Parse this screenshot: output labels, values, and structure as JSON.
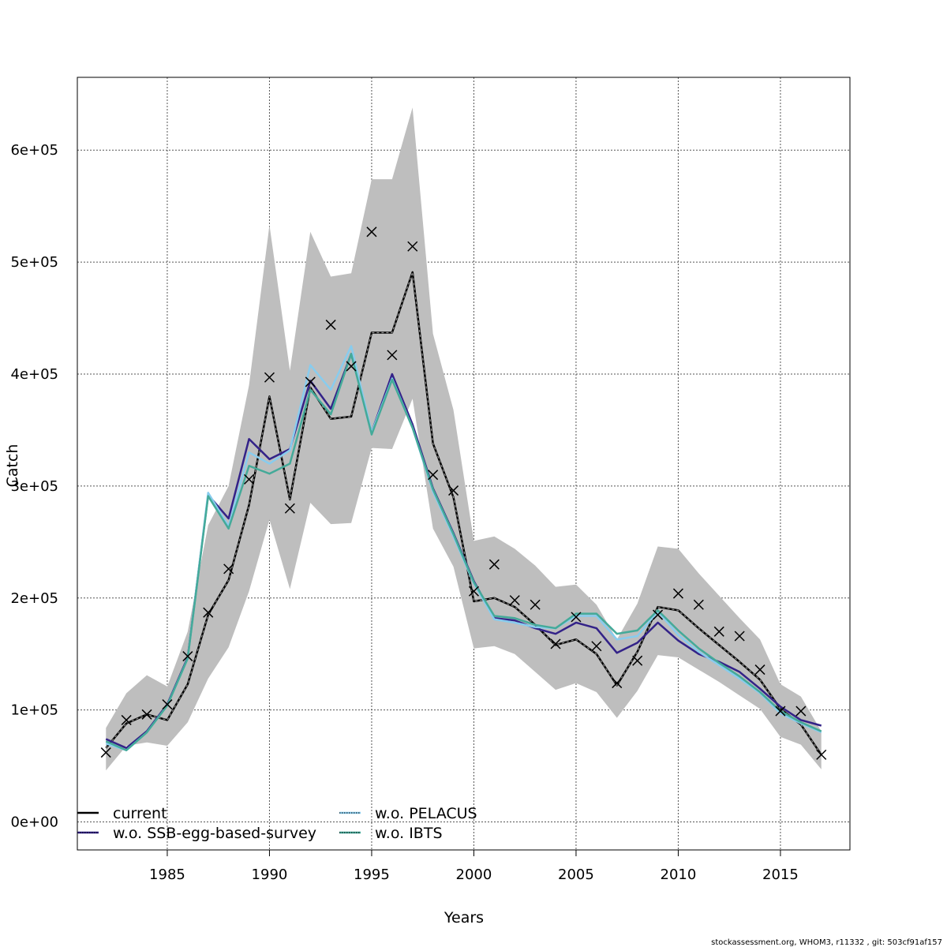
{
  "chart_data": {
    "type": "line",
    "title": "",
    "xlabel": "Years",
    "ylabel": "Catch",
    "xlim": [
      1980.6,
      2018.4
    ],
    "ylim": [
      -25000,
      665000
    ],
    "grid": true,
    "legend_position": "bottom-left",
    "x_ticks": [
      1985,
      1990,
      1995,
      2000,
      2005,
      2010,
      2015
    ],
    "x_tick_labels": [
      "1985",
      "1990",
      "1995",
      "2000",
      "2005",
      "2010",
      "2015"
    ],
    "y_ticks": [
      0,
      100000,
      200000,
      300000,
      400000,
      500000,
      600000
    ],
    "y_tick_labels": [
      "0e+00",
      "1e+05",
      "2e+05",
      "3e+05",
      "4e+05",
      "5e+05",
      "6e+05"
    ],
    "x": [
      1982,
      1983,
      1984,
      1985,
      1986,
      1987,
      1988,
      1989,
      1990,
      1991,
      1992,
      1993,
      1994,
      1995,
      1996,
      1997,
      1998,
      1999,
      2000,
      2001,
      2002,
      2003,
      2004,
      2005,
      2006,
      2007,
      2008,
      2009,
      2010,
      2011,
      2012,
      2013,
      2014,
      2015,
      2016,
      2017
    ],
    "observed": [
      62000,
      91000,
      96000,
      105000,
      148000,
      187000,
      226000,
      306000,
      397000,
      280000,
      393000,
      444000,
      407000,
      527000,
      417000,
      514000,
      310000,
      296000,
      206000,
      230000,
      198000,
      194000,
      159000,
      183000,
      157000,
      124000,
      144000,
      185000,
      204000,
      194000,
      170000,
      166000,
      136000,
      99000,
      99000,
      60000
    ],
    "band_upper": [
      84000,
      115000,
      131000,
      121000,
      170000,
      265000,
      300000,
      390000,
      533000,
      403000,
      527000,
      487000,
      490000,
      574000,
      574000,
      638000,
      436000,
      368000,
      251000,
      255000,
      244000,
      229000,
      210000,
      212000,
      194000,
      163000,
      195000,
      246000,
      244000,
      222000,
      202000,
      182000,
      163000,
      123000,
      112000,
      81000
    ],
    "band_lower": [
      46000,
      68000,
      71000,
      68000,
      89000,
      128000,
      156000,
      206000,
      270000,
      208000,
      285000,
      266000,
      267000,
      334000,
      333000,
      378000,
      262000,
      228000,
      155000,
      157000,
      150000,
      134000,
      118000,
      124000,
      116000,
      93000,
      117000,
      149000,
      147000,
      136000,
      125000,
      113000,
      101000,
      76000,
      69000,
      47000
    ],
    "series": [
      {
        "name": "current",
        "color": "#000000",
        "values": [
          66000,
          88000,
          96000,
          91000,
          123000,
          185000,
          216000,
          283000,
          380000,
          288000,
          388000,
          360000,
          362000,
          437000,
          437000,
          491000,
          338000,
          290000,
          197000,
          200000,
          192000,
          176000,
          158000,
          163000,
          150000,
          122000,
          152000,
          192000,
          189000,
          173000,
          158000,
          143000,
          127000,
          101000,
          87000,
          60000
        ]
      },
      {
        "name": "w.o. SSB-egg-based-survey",
        "color": "#332288",
        "values": [
          74000,
          66000,
          81000,
          105000,
          147000,
          292000,
          271000,
          342000,
          324000,
          333000,
          394000,
          369000,
          418000,
          348000,
          400000,
          355000,
          298000,
          258000,
          215000,
          182000,
          180000,
          173000,
          168000,
          178000,
          173000,
          151000,
          160000,
          178000,
          162000,
          150000,
          143000,
          134000,
          119000,
          103000,
          91000,
          86000
        ]
      },
      {
        "name": "w.o. PELACUS",
        "color": "#88CCEE",
        "values": [
          70000,
          64000,
          80000,
          104000,
          146000,
          294000,
          264000,
          330000,
          320000,
          332000,
          408000,
          386000,
          425000,
          348000,
          396000,
          352000,
          295000,
          255000,
          213000,
          181000,
          178000,
          174000,
          173000,
          184000,
          184000,
          163000,
          166000,
          188000,
          167000,
          152000,
          140000,
          128000,
          115000,
          97000,
          88000,
          80000
        ]
      },
      {
        "name": "w.o. IBTS",
        "color": "#44AA99",
        "values": [
          72000,
          64000,
          80000,
          104000,
          146000,
          291000,
          262000,
          318000,
          311000,
          320000,
          386000,
          364000,
          418000,
          346000,
          395000,
          352000,
          297000,
          257000,
          214000,
          184000,
          182000,
          176000,
          173000,
          186000,
          186000,
          168000,
          171000,
          189000,
          171000,
          155000,
          142000,
          130000,
          116000,
          99000,
          89000,
          81000
        ]
      }
    ],
    "band_color": "#BEBEBE"
  },
  "footer": "stockassessment.org, WHOM3, r11332 , git: 503cf91af157"
}
